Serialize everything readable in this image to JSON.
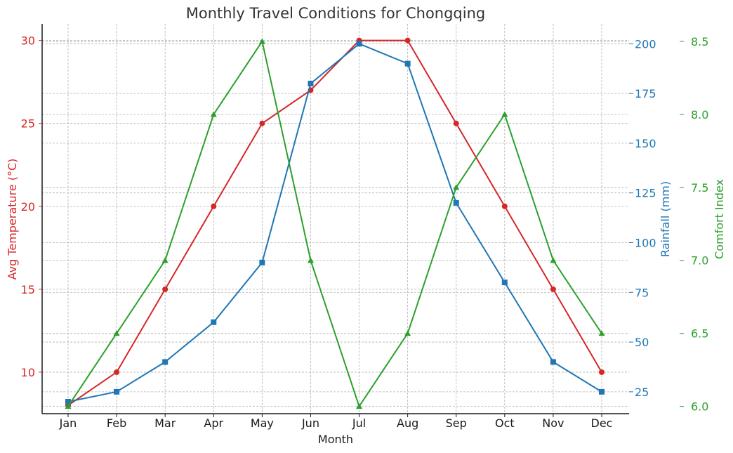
{
  "chart_data": {
    "type": "line",
    "title": "Monthly Travel Conditions for Chongqing",
    "xlabel": "Month",
    "categories": [
      "Jan",
      "Feb",
      "Mar",
      "Apr",
      "May",
      "Jun",
      "Jul",
      "Aug",
      "Sep",
      "Oct",
      "Nov",
      "Dec"
    ],
    "grid": true,
    "axes": [
      {
        "id": "temp",
        "label": "Avg Temperature (°C)",
        "side": "left",
        "color": "#d62728",
        "ylim": [
          7.5,
          31
        ],
        "ticks": [
          10,
          15,
          20,
          25,
          30
        ],
        "tick_labels": [
          "10",
          "15",
          "20",
          "25",
          "30"
        ]
      },
      {
        "id": "rain",
        "label": "Rainfall (mm)",
        "side": "right",
        "color": "#1f77b4",
        "ylim": [
          14,
          210
        ],
        "ticks": [
          25,
          50,
          75,
          100,
          125,
          150,
          175,
          200
        ],
        "tick_labels": [
          "25",
          "50",
          "75",
          "100",
          "125",
          "150",
          "175",
          "200"
        ]
      },
      {
        "id": "comfort",
        "label": "Comfort Index",
        "side": "right-outer",
        "color": "#2ca02c",
        "ylim": [
          5.95,
          8.62
        ],
        "ticks": [
          6.0,
          6.5,
          7.0,
          7.5,
          8.0,
          8.5
        ],
        "tick_labels": [
          "6.0",
          "6.5",
          "7.0",
          "7.5",
          "8.0",
          "8.5"
        ]
      }
    ],
    "series": [
      {
        "axis": "temp",
        "color": "#d62728",
        "marker": "circle",
        "values": [
          8,
          10,
          15,
          20,
          25,
          27,
          30,
          30,
          25,
          20,
          15,
          10
        ]
      },
      {
        "axis": "rain",
        "color": "#1f77b4",
        "marker": "square",
        "values": [
          20,
          25,
          40,
          60,
          90,
          180,
          200,
          190,
          120,
          80,
          40,
          25
        ]
      },
      {
        "axis": "comfort",
        "color": "#2ca02c",
        "marker": "triangle",
        "values": [
          6.0,
          6.5,
          7.0,
          8.0,
          8.5,
          7.0,
          6.0,
          6.5,
          7.5,
          8.0,
          7.0,
          6.5
        ]
      }
    ]
  }
}
